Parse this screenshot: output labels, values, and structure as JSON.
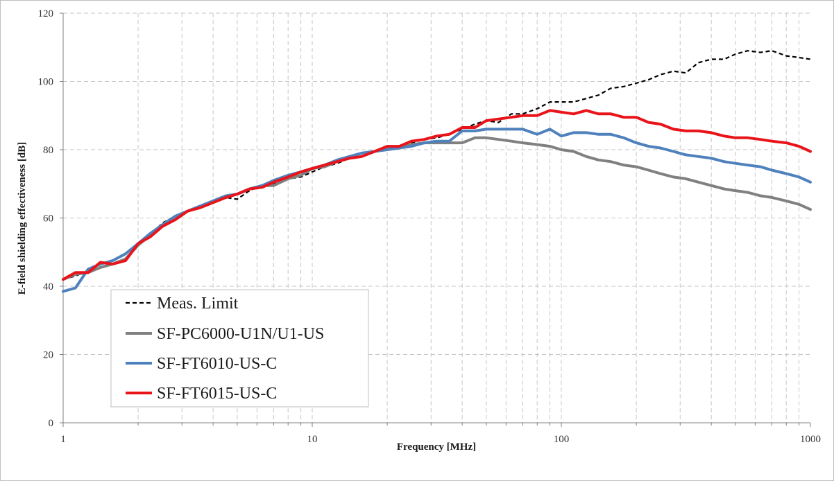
{
  "chart_data": {
    "type": "line",
    "title": "",
    "xlabel": "Frequency [MHz]",
    "ylabel": "E-field shielding effectiveness [dB]",
    "xscale": "log",
    "xlim": [
      1,
      1000
    ],
    "ylim": [
      0,
      120
    ],
    "x_ticks": [
      1,
      10,
      100,
      1000
    ],
    "x_tick_labels": [
      "1",
      "10",
      "100",
      "1000"
    ],
    "y_ticks": [
      0,
      20,
      40,
      60,
      80,
      100,
      120
    ],
    "y_tick_labels": [
      "0",
      "20",
      "40",
      "60",
      "80",
      "100",
      "120"
    ],
    "grid": "dashed major and minor",
    "legend_position": "bottom-left",
    "series": [
      {
        "name": "Meas. Limit",
        "color": "#000000",
        "style": "dashed",
        "x": [
          1,
          1.12,
          1.26,
          1.41,
          1.58,
          1.78,
          2,
          2.24,
          2.5,
          2.82,
          3.16,
          3.55,
          4,
          4.5,
          5,
          5.6,
          6.3,
          7,
          8,
          9,
          10,
          11.2,
          12.6,
          14.1,
          15.8,
          17.8,
          20,
          22.4,
          25,
          28.2,
          31.6,
          35.5,
          40,
          45,
          50,
          56,
          63,
          70,
          80,
          90,
          100,
          112,
          126,
          141,
          158,
          178,
          200,
          224,
          250,
          282,
          316,
          355,
          400,
          450,
          500,
          560,
          630,
          700,
          800,
          900,
          1000
        ],
        "values": [
          42,
          43,
          44.5,
          45.5,
          46.5,
          48,
          52,
          55,
          58.5,
          60.5,
          61.8,
          63,
          64.5,
          66,
          65.5,
          68,
          69.5,
          70,
          71.5,
          72,
          73.5,
          75,
          76,
          77.5,
          78,
          79.5,
          80,
          81,
          82,
          83,
          83.5,
          84.5,
          86,
          87.5,
          88.5,
          88,
          90.5,
          90.5,
          92,
          94,
          94,
          94,
          95,
          96,
          98,
          98.5,
          99.5,
          100.5,
          102,
          103,
          102.5,
          105.5,
          106.5,
          106.5,
          108,
          109,
          108.5,
          109,
          107.5,
          107,
          106.5
        ]
      },
      {
        "name": "SF-PC6000-U1N/U1-US",
        "color": "#808080",
        "style": "solid",
        "x": [
          1,
          1.12,
          1.26,
          1.41,
          1.58,
          1.78,
          2,
          2.24,
          2.5,
          2.82,
          3.16,
          3.55,
          4,
          4.5,
          5,
          5.6,
          6.3,
          7,
          8,
          9,
          10,
          11.2,
          12.6,
          14.1,
          15.8,
          17.8,
          20,
          22.4,
          25,
          28.2,
          31.6,
          35.5,
          40,
          45,
          50,
          56,
          63,
          70,
          80,
          90,
          100,
          112,
          126,
          141,
          158,
          178,
          200,
          224,
          250,
          282,
          316,
          355,
          400,
          450,
          500,
          560,
          630,
          700,
          800,
          900,
          1000
        ],
        "values": [
          42,
          43.5,
          44,
          45.5,
          46.5,
          48,
          52,
          55,
          58,
          60.5,
          62,
          63.5,
          64.5,
          66,
          67,
          68.5,
          69.5,
          69.5,
          71.5,
          72.5,
          74.5,
          75,
          76.5,
          77.5,
          78,
          79.5,
          80.5,
          80.5,
          81.5,
          82,
          82,
          82,
          82,
          83.5,
          83.5,
          83,
          82.5,
          82,
          81.5,
          81,
          80,
          79.5,
          78,
          77,
          76.5,
          75.5,
          75,
          74,
          73,
          72,
          71.5,
          70.5,
          69.5,
          68.5,
          68,
          67.5,
          66.5,
          66,
          65,
          64,
          62.5
        ]
      },
      {
        "name": "SF-FT6010-US-C",
        "color": "#4f81bd",
        "style": "solid",
        "x": [
          1,
          1.12,
          1.26,
          1.41,
          1.58,
          1.78,
          2,
          2.24,
          2.5,
          2.82,
          3.16,
          3.55,
          4,
          4.5,
          5,
          5.6,
          6.3,
          7,
          8,
          9,
          10,
          11.2,
          12.6,
          14.1,
          15.8,
          17.8,
          20,
          22.4,
          25,
          28.2,
          31.6,
          35.5,
          40,
          45,
          50,
          56,
          63,
          70,
          80,
          90,
          100,
          112,
          126,
          141,
          158,
          178,
          200,
          224,
          250,
          282,
          316,
          355,
          400,
          450,
          500,
          560,
          630,
          700,
          800,
          900,
          1000
        ],
        "values": [
          38.5,
          39.5,
          45,
          46.5,
          47.5,
          49.5,
          52.5,
          55.5,
          58,
          60.5,
          62,
          63.5,
          65,
          66.5,
          67,
          68.5,
          69.5,
          71,
          72.5,
          73.5,
          74.5,
          75.5,
          77,
          78,
          79,
          79.5,
          80,
          80.5,
          81,
          82,
          82.5,
          82.5,
          85.5,
          85.5,
          86,
          86,
          86,
          86,
          84.5,
          86,
          84,
          85,
          85,
          84.5,
          84.5,
          83.5,
          82,
          81,
          80.5,
          79.5,
          78.5,
          78,
          77.5,
          76.5,
          76,
          75.5,
          75,
          74,
          73,
          72,
          70.5
        ]
      },
      {
        "name": "SF-FT6015-US-C",
        "color": "#e8141a",
        "style": "solid",
        "x": [
          1,
          1.12,
          1.26,
          1.41,
          1.58,
          1.78,
          2,
          2.24,
          2.5,
          2.82,
          3.16,
          3.55,
          4,
          4.5,
          5,
          5.6,
          6.3,
          7,
          8,
          9,
          10,
          11.2,
          12.6,
          14.1,
          15.8,
          17.8,
          20,
          22.4,
          25,
          28.2,
          31.6,
          35.5,
          40,
          45,
          50,
          56,
          63,
          70,
          80,
          90,
          100,
          112,
          126,
          141,
          158,
          178,
          200,
          224,
          250,
          282,
          316,
          355,
          400,
          450,
          500,
          560,
          630,
          700,
          800,
          900,
          1000
        ],
        "values": [
          42,
          44,
          44,
          47,
          46.5,
          47.5,
          52.5,
          54.5,
          57.5,
          59.5,
          62,
          63,
          64.5,
          66,
          67,
          68.5,
          69,
          70.5,
          72,
          73.5,
          74.5,
          75.5,
          76.5,
          77.5,
          78,
          79.5,
          81,
          81,
          82.5,
          83,
          84,
          84.5,
          86.5,
          86.5,
          88.5,
          89,
          89.5,
          90,
          90,
          91.5,
          91,
          90.5,
          91.5,
          90.5,
          90.5,
          89.5,
          89.5,
          88,
          87.5,
          86,
          85.5,
          85.5,
          85,
          84,
          83.5,
          83.5,
          83,
          82.5,
          82,
          81,
          79.5
        ]
      }
    ]
  }
}
